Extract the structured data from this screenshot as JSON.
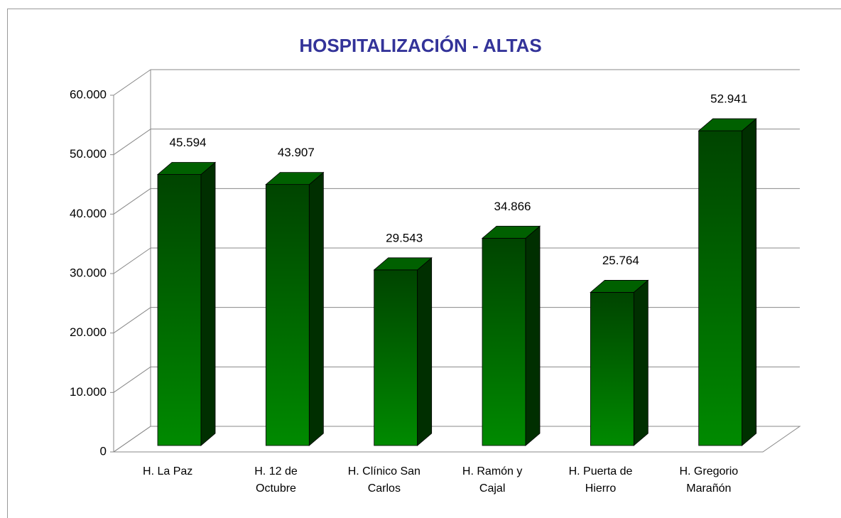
{
  "chart_data": {
    "type": "bar3d",
    "title": "HOSPITALIZACIÓN - ALTAS",
    "categories": [
      "H. La Paz",
      "H. 12 de Octubre",
      "H. Clínico San Carlos",
      "H. Ramón y Cajal",
      "H. Puerta de Hierro",
      "H. Gregorio Marañón"
    ],
    "values": [
      45594,
      43907,
      29543,
      34866,
      25764,
      52941
    ],
    "value_labels": [
      "45.594",
      "43.907",
      "29.543",
      "34.866",
      "25.764",
      "52.941"
    ],
    "color": "#008000",
    "ylim": [
      0,
      60000
    ],
    "yticks": [
      0,
      {
        "value": 10000,
        "label": "10.000"
      },
      {
        "value": 20000,
        "label": "20.000"
      },
      {
        "value": 30000,
        "label": "30.000"
      },
      {
        "value": 40000,
        "label": "40.000"
      },
      {
        "value": 50000,
        "label": "50.000"
      },
      {
        "value": 60000,
        "label": "60.000"
      }
    ],
    "grid": true
  }
}
